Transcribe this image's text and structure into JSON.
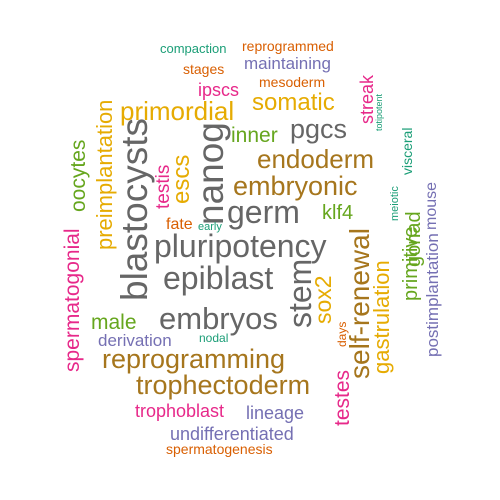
{
  "palette": {
    "green": "#1b9e77",
    "orange": "#d95f02",
    "purple": "#7570b3",
    "pink": "#e7298a",
    "lime": "#66a61e",
    "gold": "#e6ab02",
    "brown": "#a6761d",
    "gray": "#666666"
  },
  "words": [
    {
      "text": "compaction",
      "color": "green"
    },
    {
      "text": "reprogrammed",
      "color": "orange"
    },
    {
      "text": "stages",
      "color": "orange"
    },
    {
      "text": "maintaining",
      "color": "purple"
    },
    {
      "text": "mesoderm",
      "color": "orange"
    },
    {
      "text": "ipscs",
      "color": "pink"
    },
    {
      "text": "streak",
      "color": "pink"
    },
    {
      "text": "totipotent",
      "color": "green"
    },
    {
      "text": "primordial",
      "color": "gold"
    },
    {
      "text": "somatic",
      "color": "gold"
    },
    {
      "text": "preimplantation",
      "color": "gold"
    },
    {
      "text": "inner",
      "color": "lime"
    },
    {
      "text": "pgcs",
      "color": "gray"
    },
    {
      "text": "visceral",
      "color": "green"
    },
    {
      "text": "oocytes",
      "color": "lime"
    },
    {
      "text": "blastocysts",
      "color": "gray"
    },
    {
      "text": "escs",
      "color": "gold"
    },
    {
      "text": "testis",
      "color": "pink"
    },
    {
      "text": "nanog",
      "color": "gray"
    },
    {
      "text": "endoderm",
      "color": "brown"
    },
    {
      "text": "embryonic",
      "color": "brown"
    },
    {
      "text": "meiotic",
      "color": "green"
    },
    {
      "text": "mouse",
      "color": "purple"
    },
    {
      "text": "fate",
      "color": "orange"
    },
    {
      "text": "early",
      "color": "green"
    },
    {
      "text": "germ",
      "color": "gray"
    },
    {
      "text": "klf4",
      "color": "lime"
    },
    {
      "text": "spermatogonial",
      "color": "pink"
    },
    {
      "text": "pluripotency",
      "color": "gray"
    },
    {
      "text": "primitive",
      "color": "lime"
    },
    {
      "text": "gonad",
      "color": "lime"
    },
    {
      "text": "postimplantation",
      "color": "purple"
    },
    {
      "text": "epiblast",
      "color": "gray"
    },
    {
      "text": "self-renewal",
      "color": "brown"
    },
    {
      "text": "stem",
      "color": "gray"
    },
    {
      "text": "sox2",
      "color": "gold"
    },
    {
      "text": "gastrulation",
      "color": "gold"
    },
    {
      "text": "male",
      "color": "lime"
    },
    {
      "text": "embryos",
      "color": "gray"
    },
    {
      "text": "days",
      "color": "orange"
    },
    {
      "text": "derivation",
      "color": "purple"
    },
    {
      "text": "nodal",
      "color": "green"
    },
    {
      "text": "reprogramming",
      "color": "brown"
    },
    {
      "text": "testes",
      "color": "pink"
    },
    {
      "text": "trophectoderm",
      "color": "brown"
    },
    {
      "text": "trophoblast",
      "color": "pink"
    },
    {
      "text": "lineage",
      "color": "purple"
    },
    {
      "text": "undifferentiated",
      "color": "purple"
    },
    {
      "text": "spermatogenesis",
      "color": "orange"
    }
  ]
}
